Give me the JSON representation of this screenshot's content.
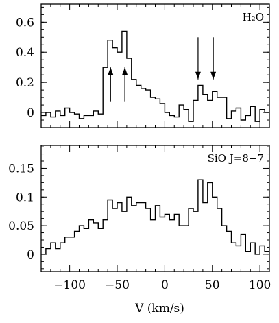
{
  "chart_data": [
    {
      "type": "line",
      "drawstyle": "steps",
      "panel_label": "H₂O",
      "xlim": [
        -130,
        110
      ],
      "ylim": [
        -0.1,
        0.72
      ],
      "yticks": [
        0,
        0.2,
        0.4,
        0.6
      ],
      "ytick_labels": [
        "0",
        "0.2",
        "0.4",
        "0.6"
      ],
      "xticks": [
        -100,
        -50,
        0,
        50,
        100
      ],
      "x": [
        -130,
        -125,
        -120,
        -115,
        -110,
        -105,
        -100,
        -95,
        -90,
        -85,
        -80,
        -75,
        -70,
        -65,
        -60,
        -55,
        -50,
        -45,
        -40,
        -35,
        -30,
        -25,
        -20,
        -15,
        -10,
        -5,
        0,
        5,
        10,
        15,
        20,
        25,
        30,
        35,
        40,
        45,
        50,
        55,
        60,
        65,
        70,
        75,
        80,
        85,
        90,
        95,
        100,
        105
      ],
      "y": [
        -0.02,
        0.0,
        -0.03,
        0.01,
        -0.02,
        0.03,
        0.0,
        -0.01,
        -0.04,
        -0.02,
        -0.02,
        0.01,
        -0.01,
        0.3,
        0.48,
        0.43,
        0.4,
        0.54,
        0.36,
        0.22,
        0.18,
        0.16,
        0.15,
        0.1,
        0.09,
        0.06,
        0.0,
        -0.02,
        -0.03,
        0.05,
        0.02,
        -0.06,
        0.08,
        0.18,
        0.12,
        0.08,
        0.14,
        0.1,
        0.1,
        -0.04,
        0.01,
        0.03,
        -0.05,
        -0.02,
        0.04,
        -0.06,
        0.02,
        0.0
      ],
      "arrows": [
        {
          "x": -57,
          "direction": "up",
          "from": 0.07,
          "to": 0.3
        },
        {
          "x": -42,
          "direction": "up",
          "from": 0.07,
          "to": 0.3
        },
        {
          "x": 35,
          "direction": "down",
          "from": 0.5,
          "to": 0.22
        },
        {
          "x": 51,
          "direction": "down",
          "from": 0.5,
          "to": 0.22
        }
      ]
    },
    {
      "type": "line",
      "drawstyle": "steps",
      "panel_label": "SiO J=8−7",
      "xlim": [
        -130,
        110
      ],
      "ylim": [
        -0.03,
        0.19
      ],
      "yticks": [
        0,
        0.05,
        0.1,
        0.15
      ],
      "ytick_labels": [
        "0",
        "0.05",
        "0.1",
        "0.15"
      ],
      "xticks": [
        -100,
        -50,
        0,
        50,
        100
      ],
      "xtick_labels": [
        "−100",
        "−50",
        "0",
        "50",
        "100"
      ],
      "xlabel": "V (km/s)",
      "x": [
        -130,
        -125,
        -120,
        -115,
        -110,
        -105,
        -100,
        -95,
        -90,
        -85,
        -80,
        -75,
        -70,
        -65,
        -60,
        -55,
        -50,
        -45,
        -40,
        -35,
        -30,
        -25,
        -20,
        -15,
        -10,
        -5,
        0,
        5,
        10,
        15,
        20,
        25,
        30,
        35,
        40,
        45,
        50,
        55,
        60,
        65,
        70,
        75,
        80,
        85,
        90,
        95,
        100,
        105
      ],
      "y": [
        0.0,
        0.01,
        0.02,
        0.01,
        0.02,
        0.03,
        0.03,
        0.04,
        0.05,
        0.045,
        0.06,
        0.055,
        0.045,
        0.06,
        0.095,
        0.08,
        0.09,
        0.075,
        0.1,
        0.085,
        0.09,
        0.09,
        0.08,
        0.06,
        0.085,
        0.065,
        0.07,
        0.06,
        0.07,
        0.05,
        0.05,
        0.08,
        0.075,
        0.13,
        0.09,
        0.125,
        0.1,
        0.08,
        0.05,
        0.04,
        0.02,
        0.015,
        0.035,
        0.005,
        0.02,
        0.0,
        0.015,
        0.005
      ]
    }
  ]
}
